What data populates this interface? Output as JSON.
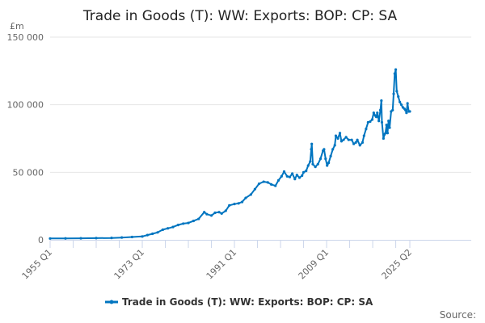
{
  "chart_data": {
    "type": "line",
    "title": "Trade in Goods (T): WW: Exports: BOP: CP: SA",
    "ylabel": "£m",
    "xlabel": "",
    "ylim": [
      0,
      150000
    ],
    "xlim": [
      1955.0,
      2025.25
    ],
    "yticks": [
      0,
      50000,
      100000,
      150000
    ],
    "ytick_labels": [
      "0",
      "50 000",
      "100 000",
      "150 000"
    ],
    "xtick_labels": [
      {
        "x": 1955.0,
        "label": "1955 Q1"
      },
      {
        "x": 1973.0,
        "label": "1973 Q1"
      },
      {
        "x": 1991.0,
        "label": "1991 Q1"
      },
      {
        "x": 2009.0,
        "label": "2009 Q1"
      },
      {
        "x": 2025.25,
        "label": "2025 Q2"
      }
    ],
    "minor_tick_step_years": 4.5,
    "grid": true,
    "legend_position": "bottom",
    "color": "#0075c0",
    "series": [
      {
        "name": "Trade in Goods (T): WW: Exports: BOP: CP: SA",
        "points": [
          [
            1955.0,
            1000
          ],
          [
            1958,
            1050
          ],
          [
            1961,
            1150
          ],
          [
            1964,
            1250
          ],
          [
            1967,
            1400
          ],
          [
            1969,
            1700
          ],
          [
            1971,
            2100
          ],
          [
            1973.0,
            2500
          ],
          [
            1974,
            3500
          ],
          [
            1975,
            4500
          ],
          [
            1976,
            5500
          ],
          [
            1977,
            7500
          ],
          [
            1978,
            8500
          ],
          [
            1979,
            9500
          ],
          [
            1980,
            11000
          ],
          [
            1981,
            12000
          ],
          [
            1982,
            12500
          ],
          [
            1983,
            14000
          ],
          [
            1984,
            15500
          ],
          [
            1985.1,
            20500
          ],
          [
            1985.6,
            19000
          ],
          [
            1986.5,
            18000
          ],
          [
            1987.2,
            20000
          ],
          [
            1988,
            20500
          ],
          [
            1988.5,
            19500
          ],
          [
            1989.3,
            21500
          ],
          [
            1990,
            25500
          ],
          [
            1991,
            26500
          ],
          [
            1991.8,
            27000
          ],
          [
            1992.5,
            28000
          ],
          [
            1993.2,
            31000
          ],
          [
            1994.2,
            33500
          ],
          [
            1995,
            37500
          ],
          [
            1995.8,
            41500
          ],
          [
            1996.7,
            43000
          ],
          [
            1997.5,
            42500
          ],
          [
            1998.2,
            41000
          ],
          [
            1999,
            40000
          ],
          [
            1999.6,
            44000
          ],
          [
            2000.2,
            47000
          ],
          [
            2000.7,
            50500
          ],
          [
            2001.3,
            47000
          ],
          [
            2001.8,
            46500
          ],
          [
            2002.3,
            49000
          ],
          [
            2002.8,
            45000
          ],
          [
            2003.2,
            48000
          ],
          [
            2003.7,
            46000
          ],
          [
            2004.2,
            47500
          ],
          [
            2004.5,
            50000
          ],
          [
            2005,
            51000
          ],
          [
            2005.4,
            55000
          ],
          [
            2005.8,
            58000
          ],
          [
            2006.0,
            67000
          ],
          [
            2006.1,
            71000
          ],
          [
            2006.3,
            56000
          ],
          [
            2006.8,
            54000
          ],
          [
            2007.3,
            56000
          ],
          [
            2007.8,
            60000
          ],
          [
            2008.3,
            66000
          ],
          [
            2008.5,
            67000
          ],
          [
            2008.8,
            60000
          ],
          [
            2009.1,
            55000
          ],
          [
            2009.4,
            57000
          ],
          [
            2009.8,
            62000
          ],
          [
            2010.2,
            67000
          ],
          [
            2010.6,
            70000
          ],
          [
            2010.8,
            77000
          ],
          [
            2011.2,
            75000
          ],
          [
            2011.6,
            79000
          ],
          [
            2011.9,
            73000
          ],
          [
            2012.3,
            74000
          ],
          [
            2012.8,
            76000
          ],
          [
            2013.3,
            74000
          ],
          [
            2013.9,
            74000
          ],
          [
            2014.3,
            71000
          ],
          [
            2014.7,
            72000
          ],
          [
            2015,
            74000
          ],
          [
            2015.5,
            70000
          ],
          [
            2016.0,
            72000
          ],
          [
            2016.3,
            77000
          ],
          [
            2016.7,
            82000
          ],
          [
            2017.1,
            87000
          ],
          [
            2017.5,
            87500
          ],
          [
            2017.9,
            89000
          ],
          [
            2018.2,
            94000
          ],
          [
            2018.5,
            92000
          ],
          [
            2018.7,
            91000
          ],
          [
            2018.9,
            94000
          ],
          [
            2019.2,
            88000
          ],
          [
            2019.5,
            96000
          ],
          [
            2019.7,
            103000
          ],
          [
            2019.8,
            87000
          ],
          [
            2020.1,
            75000
          ],
          [
            2020.3,
            78000
          ],
          [
            2020.5,
            79000
          ],
          [
            2020.7,
            85000
          ],
          [
            2020.9,
            79000
          ],
          [
            2021.1,
            88000
          ],
          [
            2021.3,
            83000
          ],
          [
            2021.6,
            95000
          ],
          [
            2021.9,
            96000
          ],
          [
            2022.1,
            108000
          ],
          [
            2022.3,
            123000
          ],
          [
            2022.5,
            126000
          ],
          [
            2022.7,
            110000
          ],
          [
            2023.0,
            106000
          ],
          [
            2023.3,
            102000
          ],
          [
            2023.6,
            100000
          ],
          [
            2023.9,
            98000
          ],
          [
            2024.2,
            97000
          ],
          [
            2024.4,
            96000
          ],
          [
            2024.6,
            94000
          ],
          [
            2024.8,
            101000
          ],
          [
            2025.05,
            95000
          ],
          [
            2025.25,
            95000
          ]
        ]
      }
    ],
    "source_label": "Source:"
  }
}
